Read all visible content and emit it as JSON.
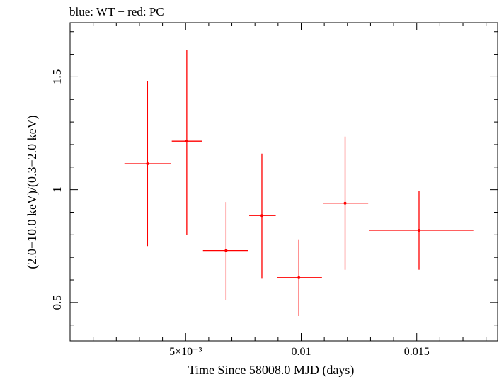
{
  "chart_data": {
    "type": "scatter",
    "title": "blue: WT − red: PC",
    "xlabel": "Time Since 58008.0 MJD (days)",
    "ylabel": "(2.0−10.0 keV)/(0.3−2.0 keV)",
    "xlim": [
      0.0,
      0.0185
    ],
    "ylim": [
      0.33,
      1.74
    ],
    "log_y": false,
    "grid": false,
    "x_ticks": [
      {
        "value": 0.005,
        "label": "5×10⁻³"
      },
      {
        "value": 0.01,
        "label": "0.01"
      },
      {
        "value": 0.015,
        "label": "0.015"
      }
    ],
    "y_ticks": [
      {
        "value": 0.5,
        "label": "0.5"
      },
      {
        "value": 1.0,
        "label": "1"
      },
      {
        "value": 1.5,
        "label": "1.5"
      }
    ],
    "series": [
      {
        "color": "#ff0000",
        "points": [
          {
            "x": 0.00335,
            "xlo": 0.00235,
            "xhi": 0.00435,
            "y": 1.115,
            "ylo": 0.75,
            "yhi": 1.48
          },
          {
            "x": 0.00505,
            "xlo": 0.0044,
            "xhi": 0.0057,
            "y": 1.215,
            "ylo": 0.8,
            "yhi": 1.62
          },
          {
            "x": 0.00675,
            "xlo": 0.00575,
            "xhi": 0.0077,
            "y": 0.73,
            "ylo": 0.51,
            "yhi": 0.945
          },
          {
            "x": 0.0083,
            "xlo": 0.00775,
            "xhi": 0.0089,
            "y": 0.885,
            "ylo": 0.605,
            "yhi": 1.16
          },
          {
            "x": 0.0099,
            "xlo": 0.00895,
            "xhi": 0.0109,
            "y": 0.61,
            "ylo": 0.44,
            "yhi": 0.78
          },
          {
            "x": 0.0119,
            "xlo": 0.01095,
            "xhi": 0.0129,
            "y": 0.94,
            "ylo": 0.645,
            "yhi": 1.235
          },
          {
            "x": 0.0151,
            "xlo": 0.01295,
            "xhi": 0.01745,
            "y": 0.82,
            "ylo": 0.645,
            "yhi": 0.995
          }
        ]
      }
    ]
  }
}
